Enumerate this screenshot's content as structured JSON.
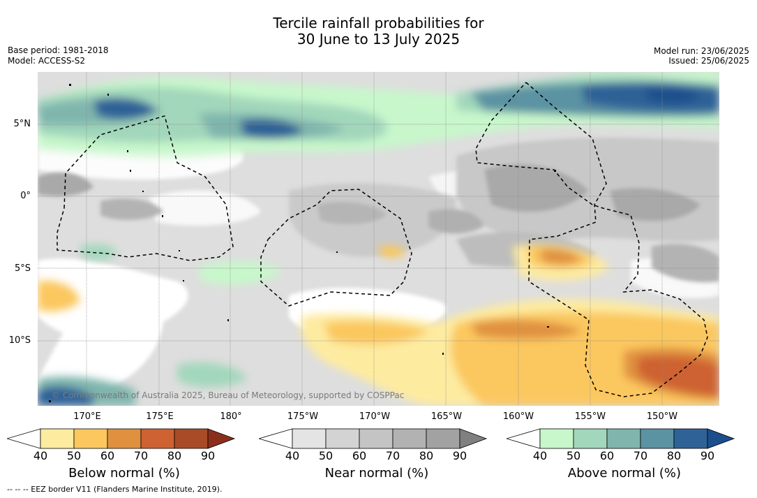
{
  "title": {
    "line1": "Tercile rainfall probabilities for",
    "line2": "30 June to 13 July 2025"
  },
  "meta": {
    "base_period": "Base period: 1981-2018",
    "model": "Model: ACCESS-S2",
    "model_run": "Model run: 23/06/2025",
    "issued": "Issued: 25/06/2025"
  },
  "map": {
    "lat_ticks": [
      "5°N",
      "0°",
      "5°S",
      "10°S"
    ],
    "lon_ticks": [
      "170°E",
      "175°E",
      "180°",
      "175°W",
      "170°W",
      "165°W",
      "160°W",
      "155°W",
      "150°W"
    ],
    "copyright": "© Commonwealth of Australia 2025, Bureau of Meteorology, supported by COSPPac",
    "colors": {
      "near_normal_base": "#dcdcdc",
      "ocean_white": "#ffffff"
    }
  },
  "colorbars": [
    {
      "name": "below",
      "title": "Below normal (%)",
      "labels": [
        "40",
        "50",
        "60",
        "70",
        "80",
        "90"
      ],
      "colors": [
        "#ffffff",
        "#fdeba0",
        "#fbc75e",
        "#e0913f",
        "#ce6232",
        "#a84b27",
        "#8b2f1c"
      ]
    },
    {
      "name": "near",
      "title": "Near normal (%)",
      "labels": [
        "40",
        "50",
        "60",
        "70",
        "80",
        "90"
      ],
      "colors": [
        "#ffffff",
        "#e4e4e4",
        "#d3d3d3",
        "#c4c4c4",
        "#b2b2b2",
        "#a2a2a2",
        "#808080"
      ]
    },
    {
      "name": "above",
      "title": "Above normal (%)",
      "labels": [
        "40",
        "50",
        "60",
        "70",
        "80",
        "90"
      ],
      "colors": [
        "#ffffff",
        "#c7f7cb",
        "#a2d7bb",
        "#7fb5ad",
        "#5b93a3",
        "#2f6297",
        "#1b4f8c"
      ]
    }
  ],
  "footer": "--  --  -- EEZ border V11 (Flanders Marine Institute, 2019)."
}
